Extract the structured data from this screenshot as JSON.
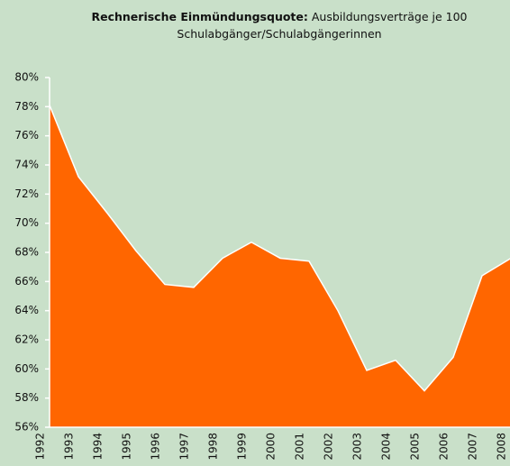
{
  "chart_data": {
    "type": "area",
    "title": "Rechnerische Einmündungsquote:",
    "subtitle": "Ausbildungsverträge je 100 Schulabgänger/Schulabgängerinnen",
    "categories": [
      "1992",
      "1993",
      "1994",
      "1995",
      "1996",
      "1997",
      "1998",
      "1999",
      "2000",
      "2001",
      "2002",
      "2003",
      "2004",
      "2005",
      "2006",
      "2007",
      "2008"
    ],
    "values": [
      78.1,
      73.2,
      70.7,
      68.1,
      65.8,
      65.6,
      67.6,
      68.7,
      67.6,
      67.4,
      64.0,
      59.9,
      60.6,
      58.5,
      60.8,
      66.4,
      67.6
    ],
    "color": "#ff6600",
    "ylim": [
      56,
      80
    ],
    "yticks": [
      {
        "value": 56,
        "label": "56%"
      },
      {
        "value": 58,
        "label": "58%"
      },
      {
        "value": 60,
        "label": "60%"
      },
      {
        "value": 62,
        "label": "62%"
      },
      {
        "value": 64,
        "label": "64%"
      },
      {
        "value": 66,
        "label": "66%"
      },
      {
        "value": 68,
        "label": "68%"
      },
      {
        "value": 70,
        "label": "70%"
      },
      {
        "value": 72,
        "label": "72%"
      },
      {
        "value": 74,
        "label": "74%"
      },
      {
        "value": 76,
        "label": "76%"
      },
      {
        "value": 78,
        "label": "78%"
      },
      {
        "value": 80,
        "label": "80%"
      }
    ]
  }
}
